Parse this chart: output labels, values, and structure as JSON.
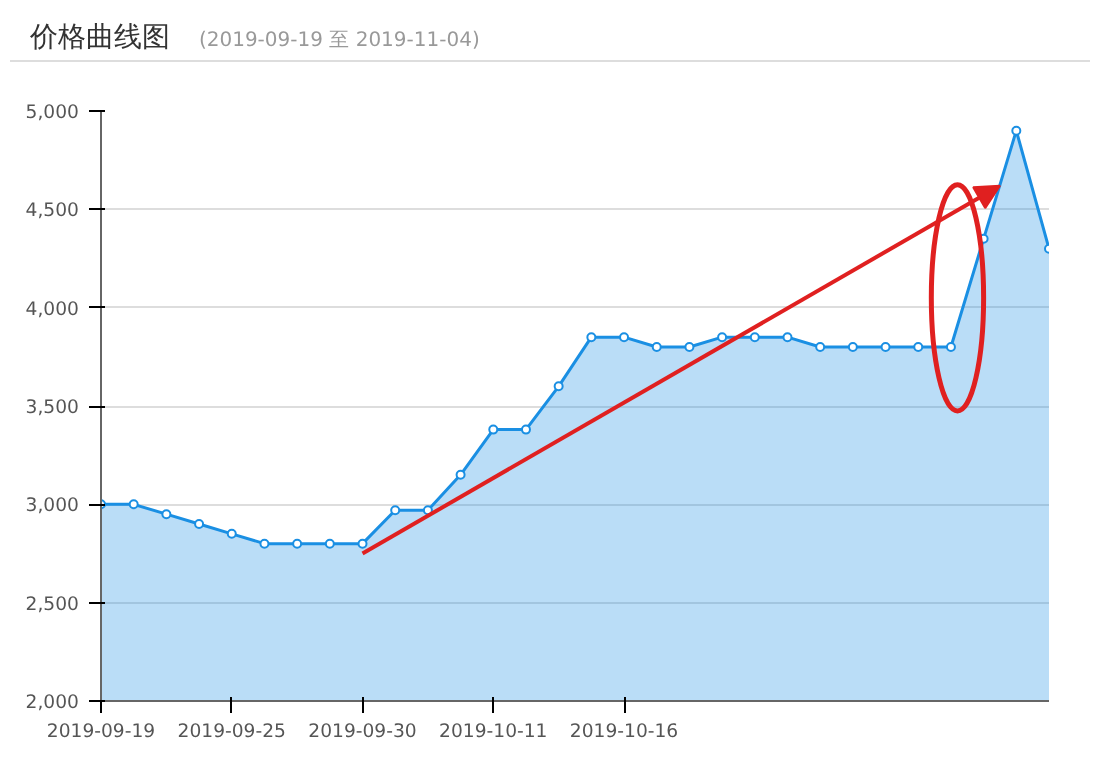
{
  "chart_data": {
    "type": "area",
    "title": "价格曲线图",
    "subtitle": "(2019-09-19 至 2019-11-04)",
    "categories": [
      "2019-09-19",
      null,
      null,
      null,
      "2019-09-25",
      null,
      null,
      null,
      "2019-09-30",
      null,
      null,
      null,
      "2019-10-11",
      null,
      null,
      null,
      "2019-10-16",
      null,
      null,
      null,
      null,
      null,
      null,
      null,
      null,
      null,
      null,
      null,
      null,
      null
    ],
    "series": [
      {
        "color": "#1a8fe3",
        "values": [
          3000,
          3000,
          2950,
          2900,
          2850,
          2800,
          2800,
          2800,
          2800,
          2970,
          2970,
          3150,
          3380,
          3380,
          3600,
          3850,
          3850,
          3800,
          3800,
          3850,
          3850,
          3850,
          3800,
          3800,
          3800,
          3800,
          3800,
          4350,
          4900,
          4300
        ]
      }
    ],
    "ylim": [
      2000,
      5000
    ],
    "yticks": [
      {
        "value": 2000,
        "label": "2,000"
      },
      {
        "value": 2500,
        "label": "2,500"
      },
      {
        "value": 3000,
        "label": "3,000"
      },
      {
        "value": 3500,
        "label": "3,500"
      },
      {
        "value": 4000,
        "label": "4,000"
      },
      {
        "value": 4500,
        "label": "4,500"
      },
      {
        "value": 5000,
        "label": "5,000"
      }
    ],
    "grid": "y",
    "marker": "circle"
  }
}
